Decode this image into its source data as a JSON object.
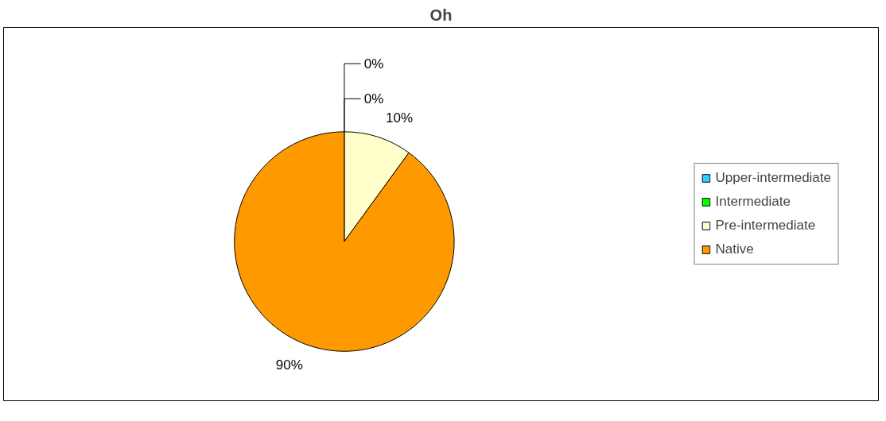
{
  "chart_data": {
    "type": "pie",
    "title": "Oh",
    "categories": [
      "Upper-intermediate",
      "Intermediate",
      "Pre-intermediate",
      "Native"
    ],
    "values": [
      0,
      0,
      10,
      90
    ],
    "colors": [
      "#33ccff",
      "#00ff00",
      "#ffffcc",
      "#ff9900"
    ],
    "value_labels": [
      "0%",
      "0%",
      "10%",
      "90%"
    ],
    "legend": "right"
  }
}
